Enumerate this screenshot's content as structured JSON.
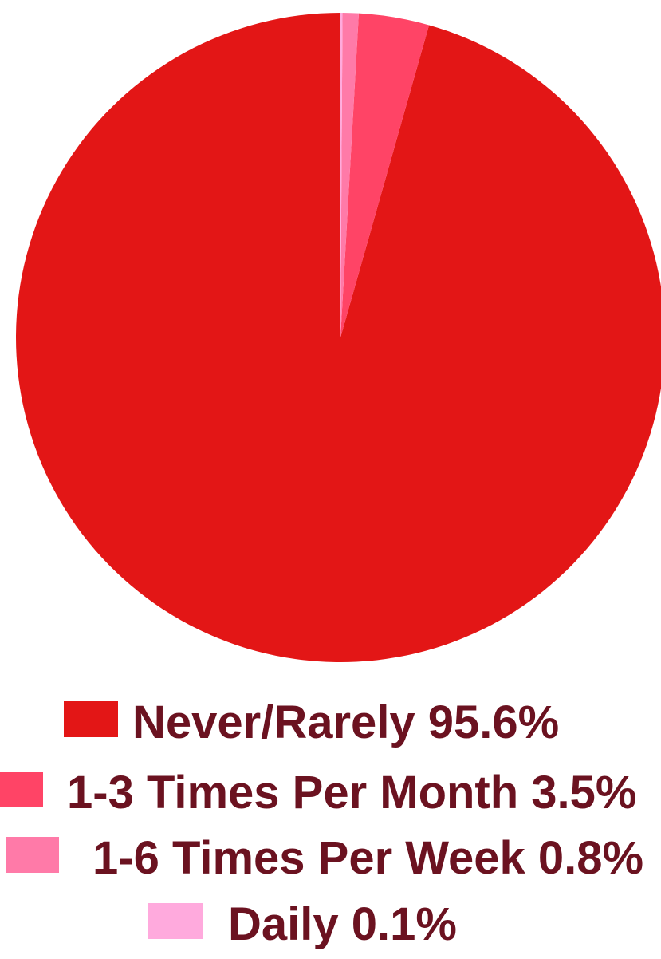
{
  "chart_data": {
    "type": "pie",
    "title": "",
    "start_angle_deg": 0,
    "direction": "clockwise",
    "slices": [
      {
        "label": "Never/Rarely",
        "value": 95.6,
        "value_label": "95.6%",
        "color": "#e31616"
      },
      {
        "label": "1-3 Times Per Month",
        "value": 3.5,
        "value_label": "3.5%",
        "color": "#ff4466"
      },
      {
        "label": "1-6 Times Per  Week",
        "value": 0.8,
        "value_label": "0.8%",
        "color": "#ff7aa8"
      },
      {
        "label": "Daily",
        "value": 0.1,
        "value_label": "0.1%",
        "color": "#ffaadd"
      }
    ],
    "legend_position": "bottom",
    "legend_text_color": "#6b1220"
  }
}
